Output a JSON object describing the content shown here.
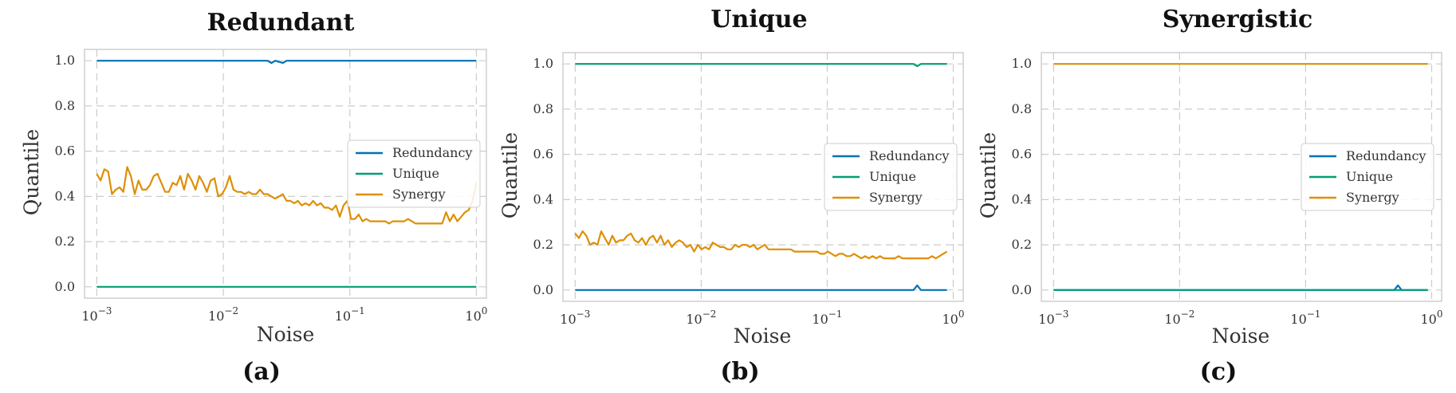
{
  "colors": {
    "redundancy": "#0173b2",
    "unique": "#029e73",
    "synergy": "#de8f05",
    "grid": "#cccccc",
    "frame": "#cfcfcf"
  },
  "chart_data": [
    {
      "type": "line",
      "title": "Redundant",
      "panel_label": "(a)",
      "xlabel": "Noise",
      "ylabel": "Quantile",
      "xscale": "log",
      "xlim": [
        0.0008,
        1.2
      ],
      "ylim": [
        -0.05,
        1.05
      ],
      "yticks": [
        "0.0",
        "0.2",
        "0.4",
        "0.6",
        "0.8",
        "1.0"
      ],
      "xtick_exponents": [
        "-3",
        "-2",
        "-1",
        "0"
      ],
      "legend_position": "center-right",
      "legend": [
        "Redundancy",
        "Unique",
        "Synergy"
      ],
      "x_log10_range": [
        -3,
        0
      ],
      "series": [
        {
          "name": "Redundancy",
          "color_key": "redundancy",
          "values": [
            1,
            1,
            1,
            1,
            1,
            1,
            1,
            1,
            1,
            1,
            1,
            1,
            1,
            1,
            1,
            1,
            1,
            1,
            1,
            1,
            1,
            1,
            1,
            1,
            1,
            1,
            1,
            1,
            1,
            1,
            1,
            1,
            1,
            1,
            1,
            1,
            1,
            1,
            1,
            1,
            1,
            1,
            1,
            1,
            1,
            1,
            0.99,
            1,
            0.995,
            0.99,
            1,
            1,
            1,
            1,
            1,
            1,
            1,
            1,
            1,
            1,
            1,
            1,
            1,
            1,
            1,
            1,
            1,
            1,
            1,
            1,
            1,
            1,
            1,
            1,
            1,
            1,
            1,
            1,
            1,
            1,
            1,
            1,
            1,
            1,
            1,
            1,
            1,
            1,
            1,
            1,
            1,
            1,
            1,
            1,
            1,
            1,
            1,
            1,
            1,
            1,
            1
          ]
        },
        {
          "name": "Unique",
          "color_key": "unique",
          "values": [
            0,
            0,
            0,
            0,
            0,
            0,
            0,
            0,
            0,
            0,
            0,
            0,
            0,
            0,
            0,
            0,
            0,
            0,
            0,
            0,
            0,
            0,
            0,
            0,
            0,
            0,
            0,
            0,
            0,
            0,
            0,
            0,
            0,
            0,
            0,
            0,
            0,
            0,
            0,
            0,
            0,
            0,
            0,
            0,
            0,
            0,
            0,
            0,
            0,
            0,
            0,
            0,
            0,
            0,
            0,
            0,
            0,
            0,
            0,
            0,
            0,
            0,
            0,
            0,
            0,
            0,
            0,
            0,
            0,
            0,
            0,
            0,
            0,
            0,
            0,
            0,
            0,
            0,
            0,
            0,
            0,
            0,
            0,
            0,
            0,
            0,
            0,
            0,
            0,
            0,
            0,
            0,
            0,
            0,
            0,
            0,
            0,
            0,
            0,
            0,
            0
          ]
        },
        {
          "name": "Synergy",
          "color_key": "synergy",
          "values": [
            0.5,
            0.47,
            0.52,
            0.51,
            0.41,
            0.43,
            0.44,
            0.42,
            0.53,
            0.49,
            0.41,
            0.47,
            0.43,
            0.43,
            0.45,
            0.49,
            0.5,
            0.46,
            0.42,
            0.42,
            0.46,
            0.45,
            0.49,
            0.43,
            0.5,
            0.47,
            0.43,
            0.49,
            0.46,
            0.42,
            0.47,
            0.48,
            0.4,
            0.41,
            0.44,
            0.49,
            0.43,
            0.42,
            0.42,
            0.41,
            0.42,
            0.41,
            0.41,
            0.43,
            0.41,
            0.41,
            0.4,
            0.39,
            0.4,
            0.41,
            0.38,
            0.38,
            0.37,
            0.38,
            0.36,
            0.37,
            0.36,
            0.38,
            0.36,
            0.37,
            0.35,
            0.35,
            0.34,
            0.36,
            0.31,
            0.36,
            0.38,
            0.3,
            0.3,
            0.32,
            0.29,
            0.3,
            0.29,
            0.29,
            0.29,
            0.29,
            0.29,
            0.28,
            0.29,
            0.29,
            0.29,
            0.29,
            0.3,
            0.29,
            0.28,
            0.28,
            0.28,
            0.28,
            0.28,
            0.28,
            0.28,
            0.28,
            0.33,
            0.29,
            0.32,
            0.29,
            0.31,
            0.33,
            0.34,
            0.38,
            0.46
          ]
        }
      ]
    },
    {
      "type": "line",
      "title": "Unique",
      "panel_label": "(b)",
      "xlabel": "Noise",
      "ylabel": "Quantile",
      "xscale": "log",
      "xlim": [
        0.0008,
        1.2
      ],
      "ylim": [
        -0.05,
        1.05
      ],
      "yticks": [
        "0.0",
        "0.2",
        "0.4",
        "0.6",
        "0.8",
        "1.0"
      ],
      "xtick_exponents": [
        "-3",
        "-2",
        "-1",
        "0"
      ],
      "legend_position": "center-right",
      "legend": [
        "Redundancy",
        "Unique",
        "Synergy"
      ],
      "x_log10_range": [
        -3,
        -0.05
      ],
      "series": [
        {
          "name": "Redundancy",
          "color_key": "redundancy",
          "values": [
            0,
            0,
            0,
            0,
            0,
            0,
            0,
            0,
            0,
            0,
            0,
            0,
            0,
            0,
            0,
            0,
            0,
            0,
            0,
            0,
            0,
            0,
            0,
            0,
            0,
            0,
            0,
            0,
            0,
            0,
            0,
            0,
            0,
            0,
            0,
            0,
            0,
            0,
            0,
            0,
            0,
            0,
            0,
            0,
            0,
            0,
            0,
            0,
            0,
            0,
            0,
            0,
            0,
            0,
            0,
            0,
            0,
            0,
            0,
            0,
            0,
            0,
            0,
            0,
            0,
            0,
            0,
            0,
            0,
            0,
            0,
            0,
            0,
            0,
            0,
            0,
            0,
            0,
            0,
            0,
            0,
            0,
            0,
            0,
            0,
            0,
            0,
            0,
            0,
            0,
            0,
            0,
            0.02,
            0,
            0,
            0,
            0,
            0,
            0,
            0,
            0
          ]
        },
        {
          "name": "Unique",
          "color_key": "unique",
          "values": [
            1,
            1,
            1,
            1,
            1,
            1,
            1,
            1,
            1,
            1,
            1,
            1,
            1,
            1,
            1,
            1,
            1,
            1,
            1,
            1,
            1,
            1,
            1,
            1,
            1,
            1,
            1,
            1,
            1,
            1,
            1,
            1,
            1,
            1,
            1,
            1,
            1,
            1,
            1,
            1,
            1,
            1,
            1,
            1,
            1,
            1,
            1,
            1,
            1,
            1,
            1,
            1,
            1,
            1,
            1,
            1,
            1,
            1,
            1,
            1,
            1,
            1,
            1,
            1,
            1,
            1,
            1,
            1,
            1,
            1,
            1,
            1,
            1,
            1,
            1,
            1,
            1,
            1,
            1,
            1,
            1,
            1,
            1,
            1,
            1,
            1,
            1,
            1,
            1,
            1,
            1,
            1,
            0.99,
            1,
            1,
            1,
            1,
            1,
            1,
            1,
            1
          ]
        },
        {
          "name": "Synergy",
          "color_key": "synergy",
          "values": [
            0.25,
            0.23,
            0.26,
            0.24,
            0.2,
            0.21,
            0.2,
            0.26,
            0.23,
            0.2,
            0.24,
            0.21,
            0.22,
            0.22,
            0.24,
            0.25,
            0.22,
            0.21,
            0.23,
            0.2,
            0.23,
            0.24,
            0.21,
            0.24,
            0.2,
            0.22,
            0.19,
            0.21,
            0.22,
            0.21,
            0.19,
            0.2,
            0.17,
            0.2,
            0.18,
            0.19,
            0.18,
            0.21,
            0.2,
            0.19,
            0.19,
            0.18,
            0.18,
            0.2,
            0.19,
            0.2,
            0.2,
            0.19,
            0.2,
            0.18,
            0.19,
            0.2,
            0.18,
            0.18,
            0.18,
            0.18,
            0.18,
            0.18,
            0.18,
            0.17,
            0.17,
            0.17,
            0.17,
            0.17,
            0.17,
            0.17,
            0.16,
            0.16,
            0.17,
            0.16,
            0.15,
            0.16,
            0.16,
            0.15,
            0.15,
            0.16,
            0.15,
            0.14,
            0.15,
            0.14,
            0.15,
            0.14,
            0.15,
            0.14,
            0.14,
            0.14,
            0.14,
            0.15,
            0.14,
            0.14,
            0.14,
            0.14,
            0.14,
            0.14,
            0.14,
            0.14,
            0.15,
            0.14,
            0.15,
            0.16,
            0.17
          ]
        }
      ]
    },
    {
      "type": "line",
      "title": "Synergistic",
      "panel_label": "(c)",
      "xlabel": "Noise",
      "ylabel": "Quantile",
      "xscale": "log",
      "xlim": [
        0.0008,
        1.2
      ],
      "ylim": [
        -0.05,
        1.05
      ],
      "yticks": [
        "0.0",
        "0.2",
        "0.4",
        "0.6",
        "0.8",
        "1.0"
      ],
      "xtick_exponents": [
        "-3",
        "-2",
        "-1",
        "0"
      ],
      "legend_position": "center-right",
      "legend": [
        "Redundancy",
        "Unique",
        "Synergy"
      ],
      "x_log10_range": [
        -3,
        -0.03
      ],
      "series": [
        {
          "name": "Redundancy",
          "color_key": "redundancy",
          "values": [
            0,
            0,
            0,
            0,
            0,
            0,
            0,
            0,
            0,
            0,
            0,
            0,
            0,
            0,
            0,
            0,
            0,
            0,
            0,
            0,
            0,
            0,
            0,
            0,
            0,
            0,
            0,
            0,
            0,
            0,
            0,
            0,
            0,
            0,
            0,
            0,
            0,
            0,
            0,
            0,
            0,
            0,
            0,
            0,
            0,
            0,
            0,
            0,
            0,
            0,
            0,
            0,
            0,
            0,
            0,
            0,
            0,
            0,
            0,
            0,
            0,
            0,
            0,
            0,
            0,
            0,
            0,
            0,
            0,
            0,
            0,
            0,
            0,
            0,
            0,
            0,
            0,
            0,
            0,
            0,
            0,
            0,
            0,
            0,
            0,
            0,
            0,
            0,
            0,
            0,
            0,
            0,
            0.02,
            0,
            0,
            0,
            0,
            0,
            0,
            0,
            0
          ]
        },
        {
          "name": "Unique",
          "color_key": "unique",
          "values": [
            0,
            0,
            0,
            0,
            0,
            0,
            0,
            0,
            0,
            0,
            0,
            0,
            0,
            0,
            0,
            0,
            0,
            0,
            0,
            0,
            0,
            0,
            0,
            0,
            0,
            0,
            0,
            0,
            0,
            0,
            0,
            0,
            0,
            0,
            0,
            0,
            0,
            0,
            0,
            0,
            0,
            0,
            0,
            0,
            0,
            0,
            0,
            0,
            0,
            0,
            0,
            0,
            0,
            0,
            0,
            0,
            0,
            0,
            0,
            0,
            0,
            0,
            0,
            0,
            0,
            0,
            0,
            0,
            0,
            0,
            0,
            0,
            0,
            0,
            0,
            0,
            0,
            0,
            0,
            0,
            0,
            0,
            0,
            0,
            0,
            0,
            0,
            0,
            0,
            0,
            0,
            0,
            0,
            0,
            0,
            0,
            0,
            0,
            0,
            0,
            0
          ]
        },
        {
          "name": "Synergy",
          "color_key": "synergy",
          "values": [
            1,
            1,
            1,
            1,
            1,
            1,
            1,
            1,
            1,
            1,
            1,
            1,
            1,
            1,
            1,
            1,
            1,
            1,
            1,
            1,
            1,
            1,
            1,
            1,
            1,
            1,
            1,
            1,
            1,
            1,
            1,
            1,
            1,
            1,
            1,
            1,
            1,
            1,
            1,
            1,
            1,
            1,
            1,
            1,
            1,
            1,
            1,
            1,
            1,
            1,
            1,
            1,
            1,
            1,
            1,
            1,
            1,
            1,
            1,
            1,
            1,
            1,
            1,
            1,
            1,
            1,
            1,
            1,
            1,
            1,
            1,
            1,
            1,
            1,
            1,
            1,
            1,
            1,
            1,
            1,
            1,
            1,
            1,
            1,
            1,
            1,
            1,
            1,
            1,
            1,
            1,
            1,
            1,
            1,
            1,
            1,
            1,
            1,
            1,
            1,
            1
          ]
        }
      ]
    }
  ]
}
